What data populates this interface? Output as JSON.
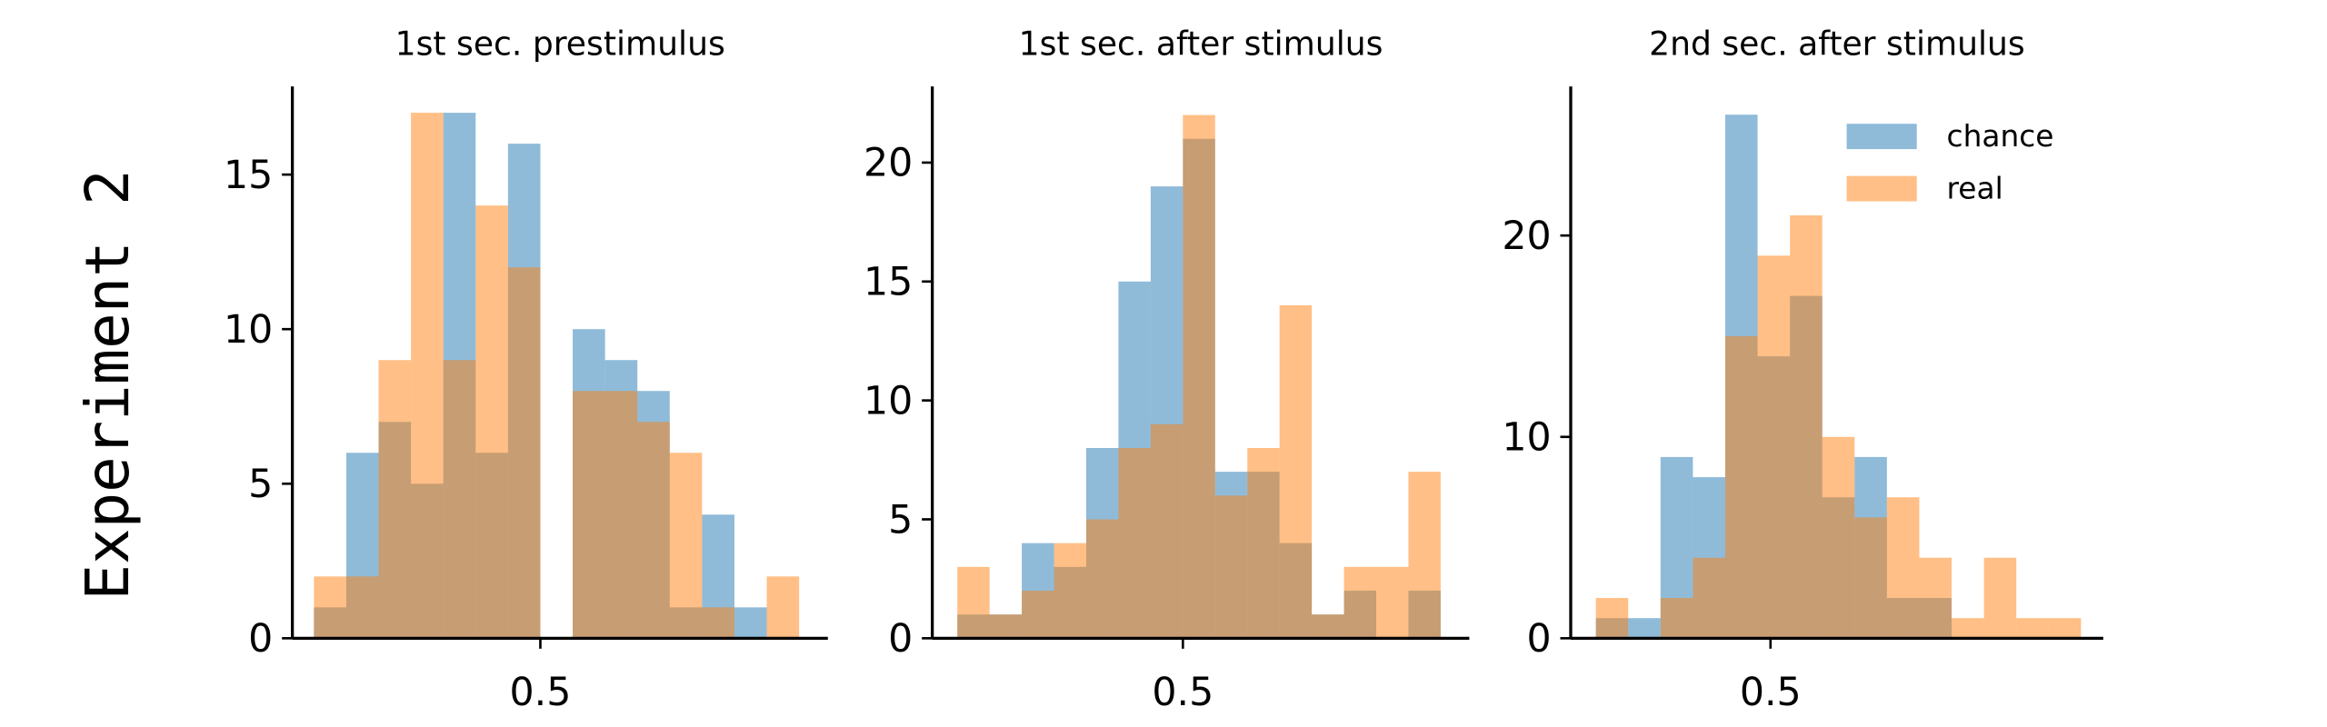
{
  "ylabel": "Experiment 2",
  "chart_data": [
    {
      "type": "histogram",
      "title": "1st sec. prestimulus",
      "bins": [
        0.185,
        0.23,
        0.275,
        0.32,
        0.365,
        0.41,
        0.455,
        0.5,
        0.545,
        0.59,
        0.635,
        0.68,
        0.725,
        0.77,
        0.815,
        0.86
      ],
      "series": [
        {
          "color": "#1f77b4",
          "values": [
            1,
            6,
            7,
            5,
            17,
            6,
            16,
            0,
            10,
            9,
            8,
            1,
            4,
            1,
            0
          ]
        },
        {
          "color": "#ff7f0e",
          "values": [
            2,
            2,
            9,
            17,
            9,
            14,
            12,
            0,
            8,
            8,
            7,
            6,
            1,
            0,
            2
          ]
        }
      ],
      "xlim": [
        0.155,
        0.9
      ],
      "xticks": [
        0.5
      ],
      "ylim": [
        0,
        17.85
      ],
      "yticks": [
        0,
        5,
        10,
        15
      ]
    },
    {
      "type": "histogram",
      "title": "1st sec. after stimulus",
      "bins": [
        0.185,
        0.23,
        0.275,
        0.32,
        0.365,
        0.41,
        0.455,
        0.5,
        0.545,
        0.59,
        0.635,
        0.68,
        0.725,
        0.77,
        0.815,
        0.86
      ],
      "series": [
        {
          "color": "#1f77b4",
          "values": [
            1,
            1,
            4,
            3,
            8,
            15,
            19,
            21,
            7,
            7,
            4,
            1,
            2,
            0,
            2
          ]
        },
        {
          "color": "#ff7f0e",
          "values": [
            3,
            1,
            2,
            4,
            5,
            8,
            9,
            22,
            6,
            8,
            14,
            1,
            3,
            3,
            7
          ]
        }
      ],
      "xlim": [
        0.15,
        0.9
      ],
      "xticks": [
        0.5
      ],
      "ylim": [
        0,
        23.2
      ],
      "yticks": [
        0,
        5,
        10,
        15,
        20
      ]
    },
    {
      "type": "histogram",
      "title": "2nd sec. after stimulus",
      "bins": [
        0.257,
        0.302,
        0.347,
        0.392,
        0.437,
        0.482,
        0.527,
        0.572,
        0.617,
        0.662,
        0.707,
        0.752,
        0.797,
        0.842,
        0.887,
        0.932
      ],
      "series": [
        {
          "name": "chance",
          "color": "#1f77b4",
          "values": [
            1,
            1,
            9,
            8,
            26,
            14,
            17,
            7,
            9,
            2,
            2,
            0,
            0,
            0,
            0
          ]
        },
        {
          "name": "real",
          "color": "#ff7f0e",
          "values": [
            2,
            0,
            2,
            4,
            15,
            19,
            21,
            10,
            6,
            7,
            4,
            1,
            4,
            1,
            1
          ]
        }
      ],
      "xlim": [
        0.222,
        0.963
      ],
      "xticks": [
        0.5
      ],
      "ylim": [
        0,
        27.4
      ],
      "yticks": [
        0,
        10,
        20
      ],
      "legend": "upper right"
    }
  ]
}
